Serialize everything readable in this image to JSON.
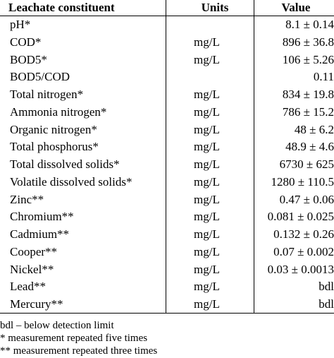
{
  "header": [
    "Leachate constituent",
    "Units",
    "Value"
  ],
  "rows": [
    [
      "pH*",
      null,
      "8.1 ± 0.14"
    ],
    [
      "COD*",
      "mg/L",
      "896 ± 36.8"
    ],
    [
      "BOD5*",
      "mg/L",
      "106 ± 5.26"
    ],
    [
      "BOD5/COD",
      null,
      "0.11"
    ],
    [
      "Total nitrogen*",
      "mg/L",
      "834 ± 19.8"
    ],
    [
      "Ammonia nitrogen*",
      "mg/L",
      "786 ± 15.2"
    ],
    [
      "Organic nitrogen*",
      "mg/L",
      "48 ± 6.2"
    ],
    [
      "Total phosphorus*",
      "mg/L",
      "48.9 ± 4.6"
    ],
    [
      "Total dissolved solids*",
      "mg/L",
      "6730 ± 625"
    ],
    [
      "Volatile dissolved solids*",
      "mg/L",
      "1280 ± 110.5"
    ],
    [
      "Zinc**",
      "mg/L",
      "0.47 ± 0.06"
    ],
    [
      "Chromium**",
      "mg/L",
      "0.081 ± 0.025"
    ],
    [
      "Cadmium**",
      "mg/L",
      "0.132 ± 0.26"
    ],
    [
      "Cooper**",
      "mg/L",
      "0.07 ± 0.002"
    ],
    [
      "Nickel**",
      "mg/L",
      "0.03 ± 0.0013"
    ],
    [
      "Lead**",
      "mg/L",
      "bdl"
    ],
    [
      "Mercury**",
      "mg/L",
      "bdl"
    ]
  ],
  "notes": [
    "bdl – below detection limit",
    "* measurement repeated five times",
    "** measurement repeated three times"
  ]
}
